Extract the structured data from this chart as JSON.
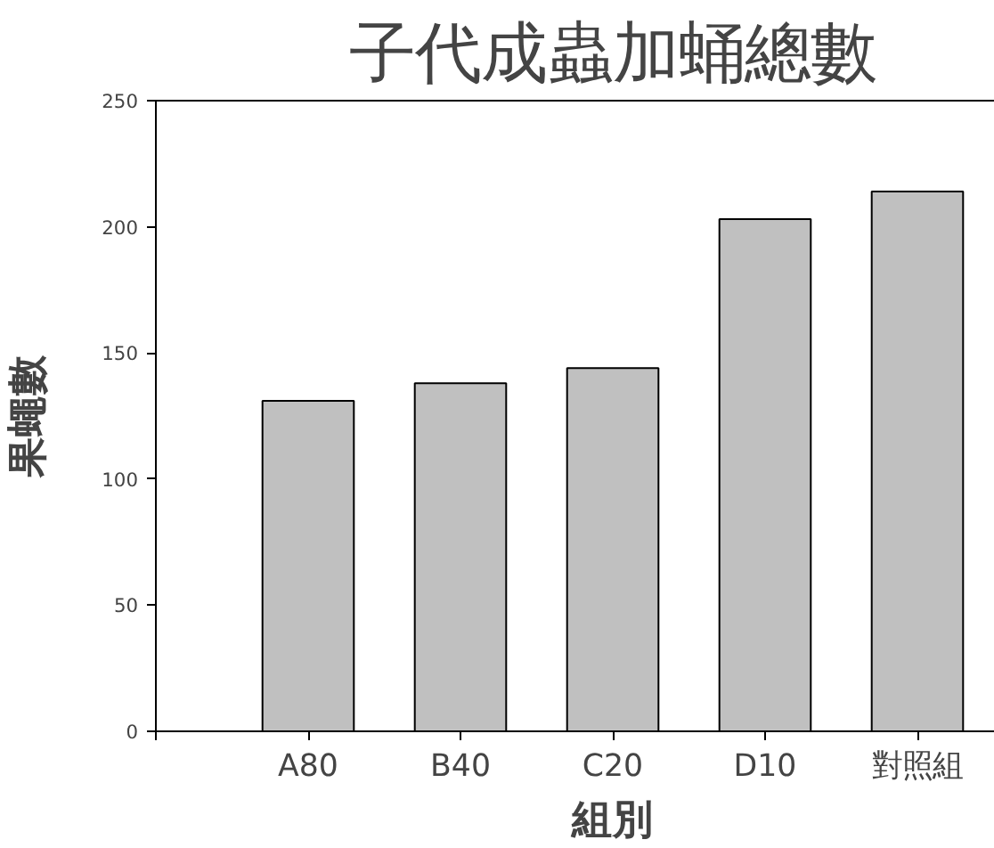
{
  "chart_data": {
    "type": "bar",
    "title": "子代成蟲加蛹總數",
    "xlabel": "組別",
    "ylabel": "果蠅數",
    "categories": [
      "A80",
      "B40",
      "C20",
      "D10",
      "對照組"
    ],
    "values": [
      131,
      138,
      144,
      203,
      214
    ],
    "color": "#c0c0c0",
    "ylim": [
      0,
      250
    ],
    "yticks": [
      0,
      50,
      100,
      150,
      200,
      250
    ],
    "grid": false
  }
}
